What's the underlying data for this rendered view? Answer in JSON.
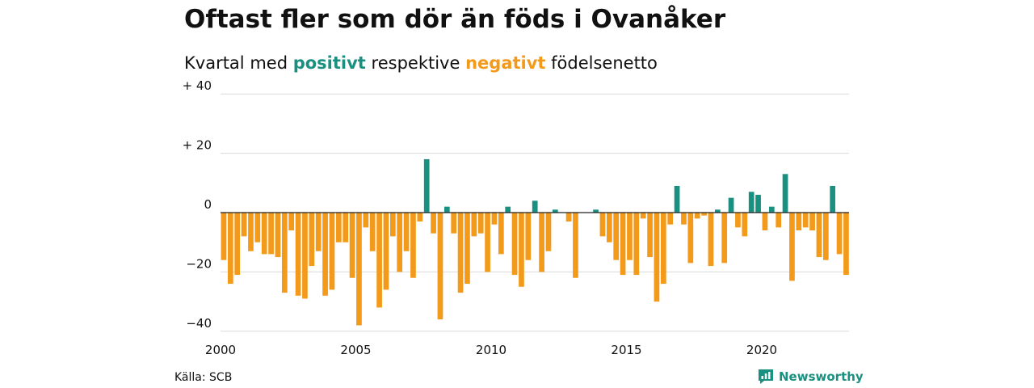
{
  "header": {
    "title": "Oftast fler som dör än föds i Ovanåker",
    "subtitle_prefix": "Kvartal med",
    "subtitle_positive": "positivt",
    "subtitle_middle": "respektive",
    "subtitle_negative": "negativt",
    "subtitle_suffix": "födelsenetto"
  },
  "footer": {
    "source": "Källa: SCB",
    "brand": "Newsworthy",
    "brand_icon": "chart-logo-icon"
  },
  "colors": {
    "positive": "#1a9080",
    "negative": "#f39a1b",
    "grid": "#d9d9d9",
    "zero": "#222222"
  },
  "chart_data": {
    "type": "bar",
    "x_start": 2000,
    "x_step": 0.25,
    "xlim": [
      2000,
      2023.25
    ],
    "ylim": [
      -42,
      42
    ],
    "y_ticks": [
      {
        "value": 40,
        "label": "+ 40"
      },
      {
        "value": 20,
        "label": "+ 20"
      },
      {
        "value": 0,
        "label": "0"
      },
      {
        "value": -20,
        "label": "−20"
      },
      {
        "value": -40,
        "label": "−40"
      }
    ],
    "x_ticks": [
      {
        "value": 2000,
        "label": "2000"
      },
      {
        "value": 2005,
        "label": "2005"
      },
      {
        "value": 2010,
        "label": "2010"
      },
      {
        "value": 2015,
        "label": "2015"
      },
      {
        "value": 2020,
        "label": "2020"
      }
    ],
    "grid": true,
    "values": [
      -16,
      -24,
      -21,
      -8,
      -13,
      -10,
      -14,
      -14,
      -15,
      -27,
      -6,
      -28,
      -29,
      -18,
      -13,
      -28,
      -26,
      -10,
      -10,
      -22,
      -38,
      -5,
      -13,
      -32,
      -26,
      -8,
      -20,
      -13,
      -22,
      -3,
      18,
      -7,
      -36,
      2,
      -7,
      -27,
      -24,
      -8,
      -7,
      -20,
      -4,
      -14,
      2,
      -21,
      -25,
      -16,
      4,
      -20,
      -13,
      1,
      0,
      -3,
      -22,
      0,
      0,
      1,
      -8,
      -10,
      -16,
      -21,
      -16,
      -21,
      -2,
      -15,
      -30,
      -24,
      -4,
      9,
      -4,
      -17,
      -2,
      -1,
      -18,
      1,
      -17,
      5,
      -5,
      -8,
      7,
      6,
      -6,
      2,
      -5,
      13,
      -23,
      -6,
      -5,
      -6,
      -15,
      -16,
      9,
      -14,
      -21
    ]
  }
}
